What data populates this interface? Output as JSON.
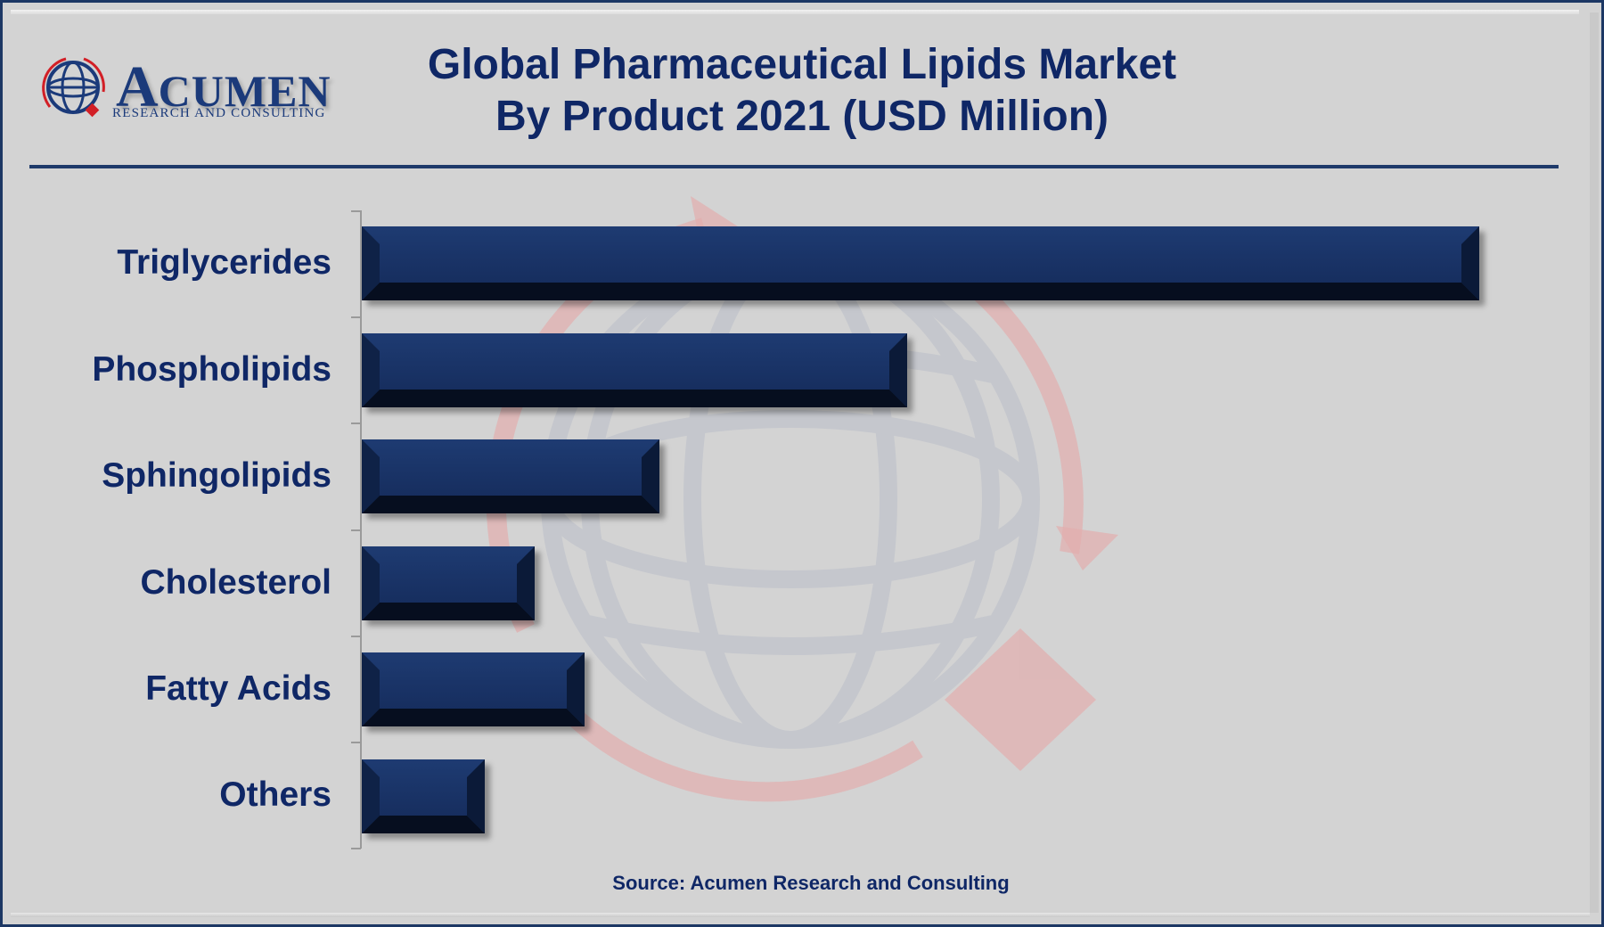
{
  "brand": {
    "logo_initial": "A",
    "logo_rest": "CUMEN",
    "logo_subtitle": "RESEARCH AND CONSULTING"
  },
  "title": {
    "line1": "Global Pharmaceutical Lipids Market",
    "line2": "By Product 2021 (USD Million)"
  },
  "source": "Source: Acumen Research and Consulting",
  "colors": {
    "bar": "#1a3468",
    "text": "#0f2766",
    "frame": "#1c3764",
    "background": "#d3d3d3",
    "watermark_red": "#e0a0a0",
    "watermark_gray": "#c4c6cc"
  },
  "chart_data": {
    "type": "bar",
    "orientation": "horizontal",
    "title": "Global Pharmaceutical Lipids Market By Product 2021 (USD Million)",
    "xlabel": "",
    "ylabel": "",
    "categories": [
      "Triglycerides",
      "Phospholipids",
      "Sphingolipids",
      "Cholesterol",
      "Fatty Acids",
      "Others"
    ],
    "values": [
      100,
      48.8,
      26.6,
      15.5,
      19.9,
      11.0
    ],
    "value_note": "Relative bar lengths (largest = 100); no numeric axis or data labels shown",
    "grid": false,
    "legend": null,
    "source": "Source: Acumen Research and Consulting"
  }
}
